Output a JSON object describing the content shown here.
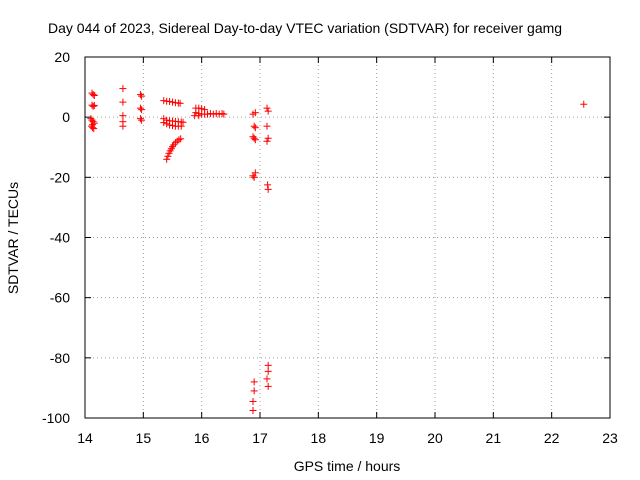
{
  "chart_data": {
    "type": "scatter",
    "title": "Day 044 of 2023, Sidereal Day-to-day VTEC variation (SDTVAR) for receiver gamg",
    "xlabel": "GPS time / hours",
    "ylabel": "SDTVAR / TECUs",
    "xlim": [
      14,
      23
    ],
    "ylim": [
      -100,
      20
    ],
    "xticks": [
      "14",
      "15",
      "16",
      "17",
      "18",
      "19",
      "20",
      "21",
      "22",
      "23"
    ],
    "yticks": [
      "20",
      "0",
      "-20",
      "-40",
      "-60",
      "-80",
      "-100"
    ],
    "grid": true,
    "marker": "plus",
    "color": "#ff0000",
    "series": [
      {
        "name": "SDTVAR",
        "points": [
          [
            14.12,
            8.0
          ],
          [
            14.14,
            7.5
          ],
          [
            14.16,
            7.2
          ],
          [
            14.12,
            4.0
          ],
          [
            14.14,
            3.6
          ],
          [
            14.16,
            3.9
          ],
          [
            14.1,
            -0.5
          ],
          [
            14.12,
            -1.0
          ],
          [
            14.14,
            -1.5
          ],
          [
            14.16,
            -2.0
          ],
          [
            14.13,
            -2.5
          ],
          [
            14.11,
            -3.0
          ],
          [
            14.13,
            -3.5
          ],
          [
            14.15,
            -3.8
          ],
          [
            14.65,
            9.5
          ],
          [
            14.65,
            5.0
          ],
          [
            14.65,
            0.5
          ],
          [
            14.65,
            -1.5
          ],
          [
            14.65,
            -3.0
          ],
          [
            14.95,
            7.5
          ],
          [
            14.97,
            7.0
          ],
          [
            14.95,
            3.0
          ],
          [
            14.97,
            2.5
          ],
          [
            14.95,
            -0.5
          ],
          [
            14.97,
            -1.0
          ],
          [
            15.35,
            5.5
          ],
          [
            15.4,
            5.3
          ],
          [
            15.45,
            5.2
          ],
          [
            15.5,
            5.0
          ],
          [
            15.55,
            4.8
          ],
          [
            15.6,
            4.7
          ],
          [
            15.63,
            4.6
          ],
          [
            15.35,
            -0.5
          ],
          [
            15.4,
            -1.0
          ],
          [
            15.45,
            -1.2
          ],
          [
            15.5,
            -1.3
          ],
          [
            15.55,
            -1.4
          ],
          [
            15.6,
            -1.5
          ],
          [
            15.65,
            -1.6
          ],
          [
            15.68,
            -1.7
          ],
          [
            15.35,
            -1.8
          ],
          [
            15.4,
            -2.2
          ],
          [
            15.45,
            -2.6
          ],
          [
            15.5,
            -2.8
          ],
          [
            15.55,
            -3.0
          ],
          [
            15.6,
            -3.0
          ],
          [
            15.65,
            -3.0
          ],
          [
            15.4,
            -14.0
          ],
          [
            15.42,
            -13.0
          ],
          [
            15.44,
            -12.0
          ],
          [
            15.46,
            -11.2
          ],
          [
            15.48,
            -10.5
          ],
          [
            15.5,
            -9.8
          ],
          [
            15.52,
            -9.2
          ],
          [
            15.55,
            -8.5
          ],
          [
            15.58,
            -8.0
          ],
          [
            15.61,
            -7.5
          ],
          [
            15.64,
            -7.2
          ],
          [
            15.9,
            3.0
          ],
          [
            15.95,
            3.0
          ],
          [
            16.0,
            2.8
          ],
          [
            16.05,
            2.5
          ],
          [
            15.9,
            1.5
          ],
          [
            15.95,
            1.2
          ],
          [
            16.0,
            1.0
          ],
          [
            16.05,
            1.0
          ],
          [
            16.1,
            1.0
          ],
          [
            16.15,
            1.2
          ],
          [
            16.2,
            1.0
          ],
          [
            16.25,
            1.2
          ],
          [
            16.3,
            1.0
          ],
          [
            16.35,
            1.2
          ],
          [
            16.38,
            1.0
          ],
          [
            15.88,
            0.5
          ],
          [
            15.95,
            0.5
          ],
          [
            16.88,
            1.0
          ],
          [
            16.92,
            1.5
          ],
          [
            16.9,
            -3.0
          ],
          [
            16.92,
            -3.5
          ],
          [
            16.88,
            -6.5
          ],
          [
            16.9,
            -7.0
          ],
          [
            16.92,
            -7.5
          ],
          [
            16.88,
            -19.5
          ],
          [
            16.9,
            -20.0
          ],
          [
            16.92,
            -18.5
          ],
          [
            16.9,
            -88.0
          ],
          [
            16.9,
            -91.0
          ],
          [
            16.88,
            -94.5
          ],
          [
            16.88,
            -97.5
          ],
          [
            17.12,
            3.0
          ],
          [
            17.14,
            2.0
          ],
          [
            17.12,
            -3.0
          ],
          [
            17.14,
            -7.0
          ],
          [
            17.12,
            -8.0
          ],
          [
            17.13,
            -22.5
          ],
          [
            17.14,
            -24.0
          ],
          [
            17.14,
            -82.5
          ],
          [
            17.14,
            -84.5
          ],
          [
            17.12,
            -87.0
          ],
          [
            17.14,
            -89.5
          ],
          [
            22.55,
            4.3
          ]
        ]
      }
    ]
  }
}
